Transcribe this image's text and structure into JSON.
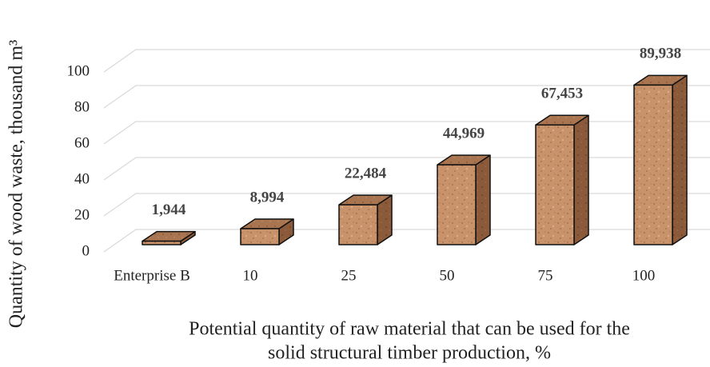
{
  "chart_data": {
    "type": "bar3d",
    "y_label": "Quantity of wood waste, thousand m³",
    "x_label": [
      "Potential quantity of raw material that can be used for the",
      "solid structural timber production, %"
    ],
    "categories": [
      "Enterprise B",
      "10",
      "25",
      "50",
      "75",
      "100"
    ],
    "values": [
      1.944,
      8.994,
      22.484,
      44.969,
      67.453,
      89.938
    ],
    "value_labels": [
      "1,944",
      "8,994",
      "22,484",
      "44,969",
      "67,453",
      "89,938"
    ],
    "color": "#c8926a",
    "ylim": [
      0,
      100
    ],
    "yticks": [
      0,
      20,
      40,
      60,
      80,
      100
    ],
    "grid": true
  }
}
